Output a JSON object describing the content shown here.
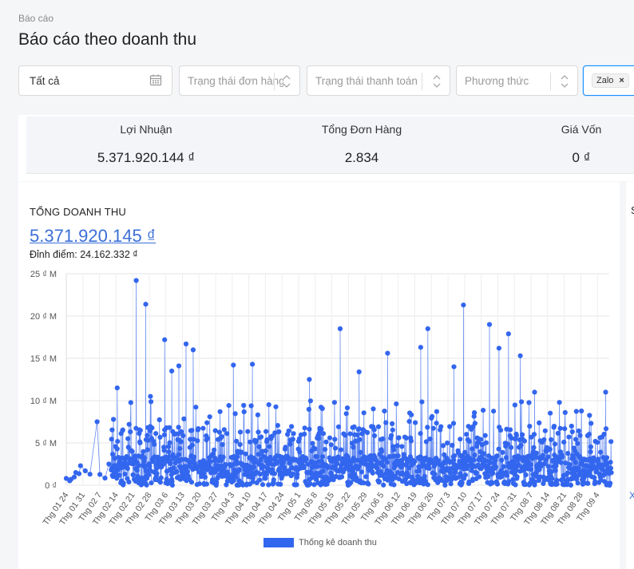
{
  "breadcrumb": "Báo cáo",
  "page_title": "Báo cáo theo doanh thu",
  "filters": {
    "date_value": "Tất cả",
    "order_status_placeholder": "Trạng thái đơn hàng",
    "payment_status_placeholder": "Trạng thái thanh toán",
    "method_placeholder": "Phương thức",
    "channel_tag": "Zalo",
    "tag_remove": "×"
  },
  "stats": [
    {
      "label": "Lợi Nhuận",
      "value": "5.371.920.144 ₫"
    },
    {
      "label": "Tổng Đơn Hàng",
      "value": "2.834"
    },
    {
      "label": "Giá Vốn",
      "value": "0 ₫"
    }
  ],
  "revenue_card": {
    "title": "TỔNG DOANH THU",
    "total": "5.371.920.145 ₫",
    "peak": "Đỉnh điểm: 24.162.332 ₫"
  },
  "side_panel": {
    "heading_initial": "S",
    "link_glyph": "X"
  },
  "colors": {
    "series": "#3366ee",
    "accent": "#1890ff",
    "total_text": "#3b6fd6"
  },
  "icons": {
    "date": "calendar-icon",
    "select": "chevron-updown-icon",
    "remove": "close-icon"
  },
  "chart_data": {
    "type": "line",
    "series": [
      {
        "name": "Thống kê doanh thu",
        "color": "#3366ee"
      }
    ],
    "ylim": [
      0,
      25000000
    ],
    "y_ticks": [
      0,
      5000000,
      10000000,
      15000000,
      20000000,
      25000000
    ],
    "y_tick_labels": [
      "0 ₫",
      "5 ₫ M",
      "10 ₫ M",
      "15 ₫ M",
      "20 ₫ M",
      "25 ₫ M"
    ],
    "x_tick_labels": [
      "Thg 01 24",
      "Thg 01 31",
      "Thg 02 7",
      "Thg 02 14",
      "Thg 02 21",
      "Thg 02 28",
      "Thg 03 6",
      "Thg 03 13",
      "Thg 03 20",
      "Thg 03 27",
      "Thg 04 3",
      "Thg 04 10",
      "Thg 04 17",
      "Thg 04 24",
      "Thg 05 1",
      "Thg 05 8",
      "Thg 05 15",
      "Thg 05 22",
      "Thg 05 29",
      "Thg 06 5",
      "Thg 06 12",
      "Thg 06 19",
      "Thg 06 26",
      "Thg 07 3",
      "Thg 07 10",
      "Thg 07 17",
      "Thg 07 24",
      "Thg 07 31",
      "Thg 08 7",
      "Thg 08 14",
      "Thg 08 21",
      "Thg 08 28",
      "Thg 09 4"
    ],
    "x_range_days": [
      0,
      229
    ],
    "peak": 24162332,
    "notable_points": [
      {
        "day": 0,
        "value": 800000
      },
      {
        "day": 2,
        "value": 700000
      },
      {
        "day": 4,
        "value": 1500000
      },
      {
        "day": 6,
        "value": 2300000
      },
      {
        "day": 8,
        "value": 1700000
      },
      {
        "day": 10,
        "value": 1300000
      },
      {
        "day": 13,
        "value": 7500000
      },
      {
        "day": 18,
        "value": 2500000
      },
      {
        "day": 21,
        "value": 11500000
      },
      {
        "day": 26,
        "value": 7200000
      },
      {
        "day": 29,
        "value": 24200000
      },
      {
        "day": 33,
        "value": 21400000
      },
      {
        "day": 35,
        "value": 10500000
      },
      {
        "day": 41,
        "value": 17200000
      },
      {
        "day": 44,
        "value": 13500000
      },
      {
        "day": 47,
        "value": 14100000
      },
      {
        "day": 50,
        "value": 16700000
      },
      {
        "day": 53,
        "value": 16000000
      },
      {
        "day": 70,
        "value": 14200000
      },
      {
        "day": 78,
        "value": 14300000
      },
      {
        "day": 102,
        "value": 12500000
      },
      {
        "day": 115,
        "value": 18500000
      },
      {
        "day": 123,
        "value": 13400000
      },
      {
        "day": 135,
        "value": 15600000
      },
      {
        "day": 149,
        "value": 16300000
      },
      {
        "day": 152,
        "value": 18500000
      },
      {
        "day": 163,
        "value": 14000000
      },
      {
        "day": 167,
        "value": 21300000
      },
      {
        "day": 178,
        "value": 19000000
      },
      {
        "day": 182,
        "value": 16200000
      },
      {
        "day": 186,
        "value": 17900000
      },
      {
        "day": 191,
        "value": 15300000
      },
      {
        "day": 197,
        "value": 11000000
      },
      {
        "day": 227,
        "value": 11000000
      }
    ]
  }
}
